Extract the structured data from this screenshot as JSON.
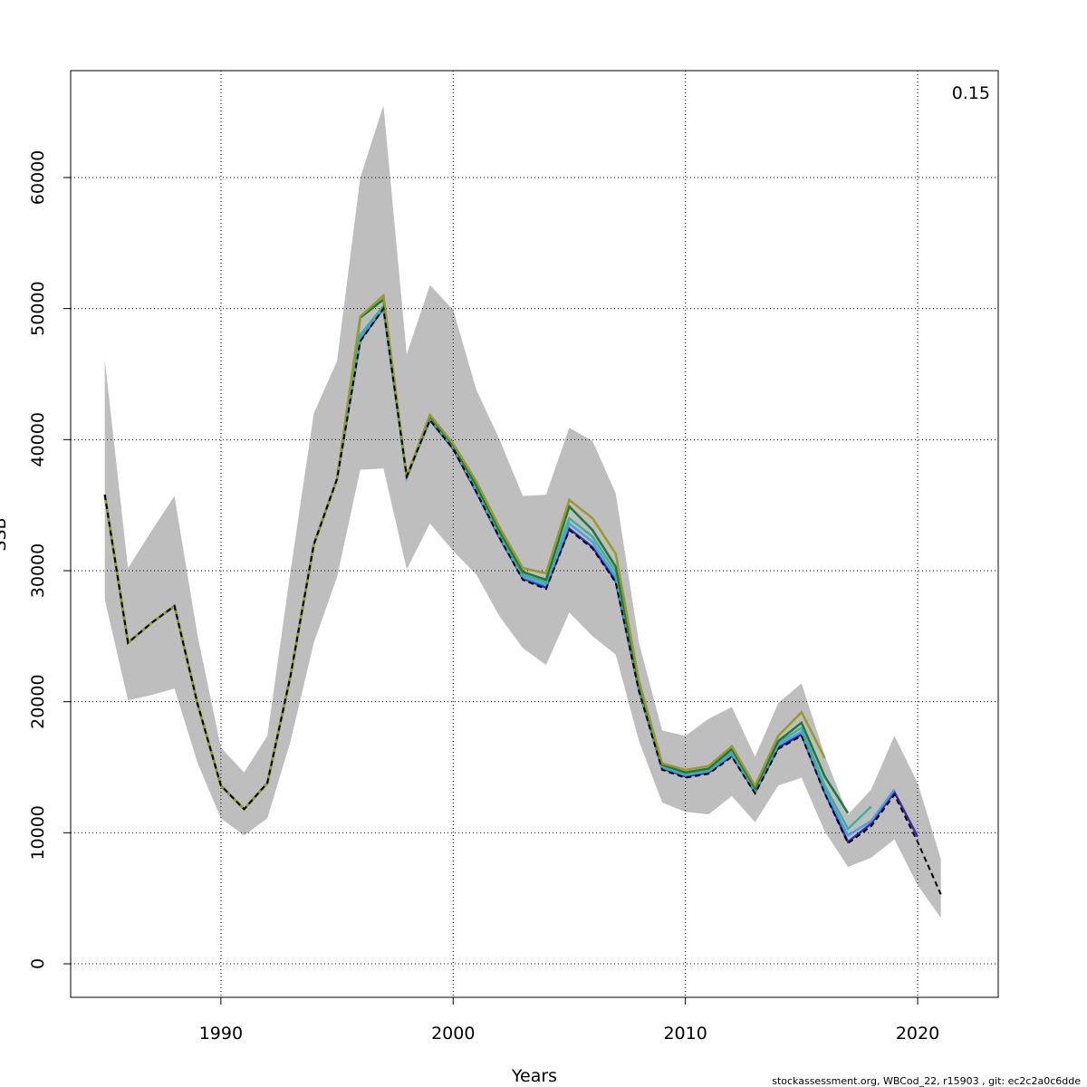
{
  "chart_data": {
    "type": "line",
    "x_label": "Years",
    "y_label": "SSB",
    "annotation": "0.15",
    "footer": "stockassessment.org, WBCod_22, r15903 , git: ec2c2a0c6dde",
    "x": [
      1985,
      1986,
      1987,
      1988,
      1989,
      1990,
      1991,
      1992,
      1993,
      1994,
      1995,
      1996,
      1997,
      1998,
      1999,
      2000,
      2001,
      2002,
      2003,
      2004,
      2005,
      2006,
      2007,
      2008,
      2009,
      2010,
      2011,
      2012,
      2013,
      2014,
      2015,
      2016,
      2017,
      2018,
      2019,
      2020,
      2021
    ],
    "xlim": [
      1983.53,
      2023.47
    ],
    "xticks": [
      1990,
      2000,
      2010,
      2020
    ],
    "ylim": [
      -2557,
      68155
    ],
    "yticks": [
      0,
      10000,
      20000,
      30000,
      40000,
      50000,
      60000
    ],
    "grid": true,
    "band": {
      "color": "#bebebe",
      "upper": [
        46100,
        30200,
        33000,
        35700,
        25000,
        16500,
        14600,
        17400,
        30000,
        42000,
        46000,
        60000,
        65500,
        46500,
        51800,
        49900,
        43800,
        40000,
        35700,
        35800,
        40900,
        39900,
        35900,
        24500,
        17800,
        17400,
        18700,
        19600,
        15800,
        19900,
        21400,
        15900,
        11400,
        13300,
        17400,
        13800,
        8000
      ],
      "lower": [
        27800,
        20100,
        20500,
        21000,
        15300,
        11100,
        9800,
        11100,
        17000,
        24500,
        29500,
        37700,
        37800,
        30100,
        33600,
        31500,
        29700,
        26500,
        24100,
        22800,
        26800,
        25000,
        23600,
        17000,
        12300,
        11600,
        11400,
        12800,
        10800,
        13600,
        14200,
        10100,
        7400,
        8100,
        9500,
        6000,
        3500
      ]
    },
    "series": [
      {
        "color": "#000000",
        "dashed": true,
        "values": [
          35800,
          24500,
          26000,
          27300,
          19800,
          13600,
          11800,
          13800,
          22000,
          32000,
          37000,
          47500,
          50000,
          37200,
          41500,
          39300,
          36000,
          32500,
          29300,
          28600,
          33100,
          31700,
          29100,
          20800,
          14800,
          14200,
          14500,
          15800,
          13000,
          16400,
          17400,
          13000,
          9200,
          10500,
          12900,
          9300,
          5300
        ]
      },
      {
        "color": "#3b2ba8",
        "values": [
          35800,
          24500,
          26000,
          27300,
          19800,
          13600,
          11800,
          13800,
          22000,
          32000,
          37000,
          47600,
          50000,
          37200,
          41500,
          39300,
          36000,
          32500,
          29400,
          28700,
          33200,
          31800,
          29200,
          20900,
          14900,
          14300,
          14600,
          15900,
          13100,
          16500,
          17500,
          13100,
          9300,
          10700,
          13100,
          9700,
          null
        ]
      },
      {
        "color": "#4aa0e8",
        "values": [
          35800,
          24500,
          26000,
          27300,
          19800,
          13600,
          11800,
          13800,
          22000,
          32000,
          37000,
          47800,
          50100,
          37100,
          41600,
          39400,
          36100,
          32600,
          29500,
          28900,
          33600,
          32200,
          29500,
          21000,
          15000,
          14400,
          14700,
          16000,
          13200,
          16700,
          17700,
          13300,
          9800,
          10900,
          13300,
          null,
          null
        ]
      },
      {
        "color": "#3fb0a0",
        "values": [
          35800,
          24500,
          26000,
          27300,
          19800,
          13600,
          11800,
          13800,
          22000,
          32000,
          37000,
          48000,
          50200,
          37100,
          41700,
          39500,
          36300,
          32800,
          29700,
          29100,
          34000,
          32600,
          29900,
          21100,
          15100,
          14500,
          14800,
          16200,
          13300,
          16900,
          18000,
          13600,
          10300,
          12000,
          null,
          null,
          null
        ]
      },
      {
        "color": "#1a7a3a",
        "values": [
          35800,
          24500,
          26000,
          27300,
          19800,
          13600,
          11800,
          13800,
          22000,
          32000,
          37000,
          49300,
          50700,
          37100,
          41800,
          39600,
          36500,
          33000,
          29900,
          29300,
          34900,
          33100,
          30300,
          21300,
          15200,
          14600,
          14900,
          16400,
          13400,
          17000,
          18400,
          14300,
          11500,
          null,
          null,
          null,
          null
        ]
      },
      {
        "color": "#9a9a2a",
        "values": [
          35800,
          24500,
          26000,
          27300,
          19800,
          13600,
          11800,
          13800,
          22000,
          32000,
          37000,
          49400,
          51000,
          37200,
          41900,
          39700,
          36800,
          33300,
          30200,
          29800,
          35400,
          34000,
          31300,
          21600,
          15300,
          14800,
          15100,
          16600,
          13600,
          17400,
          19200,
          15700,
          null,
          null,
          null,
          null,
          null
        ]
      }
    ]
  }
}
